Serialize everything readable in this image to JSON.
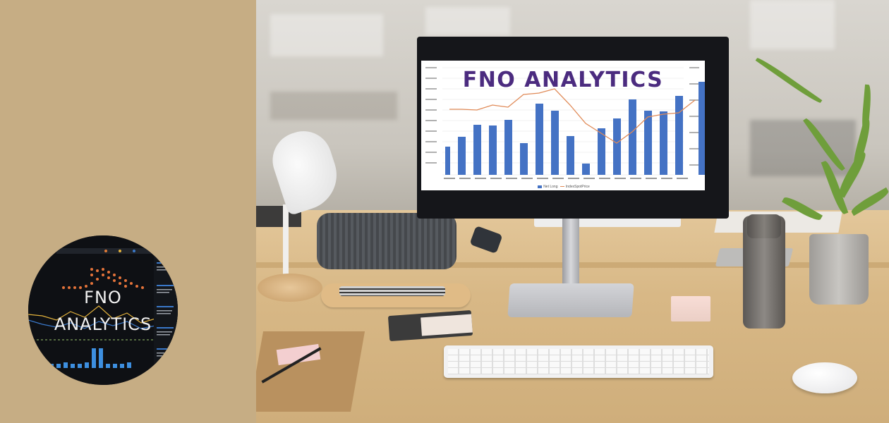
{
  "logo": {
    "line1": "FNO",
    "line2": "ANALYTICS"
  },
  "screen": {
    "title": "FNO ANALYTICS",
    "legend_bar": "Net Long",
    "legend_line": "IndexSpotPrice"
  },
  "colors": {
    "left_panel": "#c6ad84",
    "screen_title": "#4b2b7f",
    "bar_blue": "#4472c4",
    "line_orange": "#e08a57"
  }
}
